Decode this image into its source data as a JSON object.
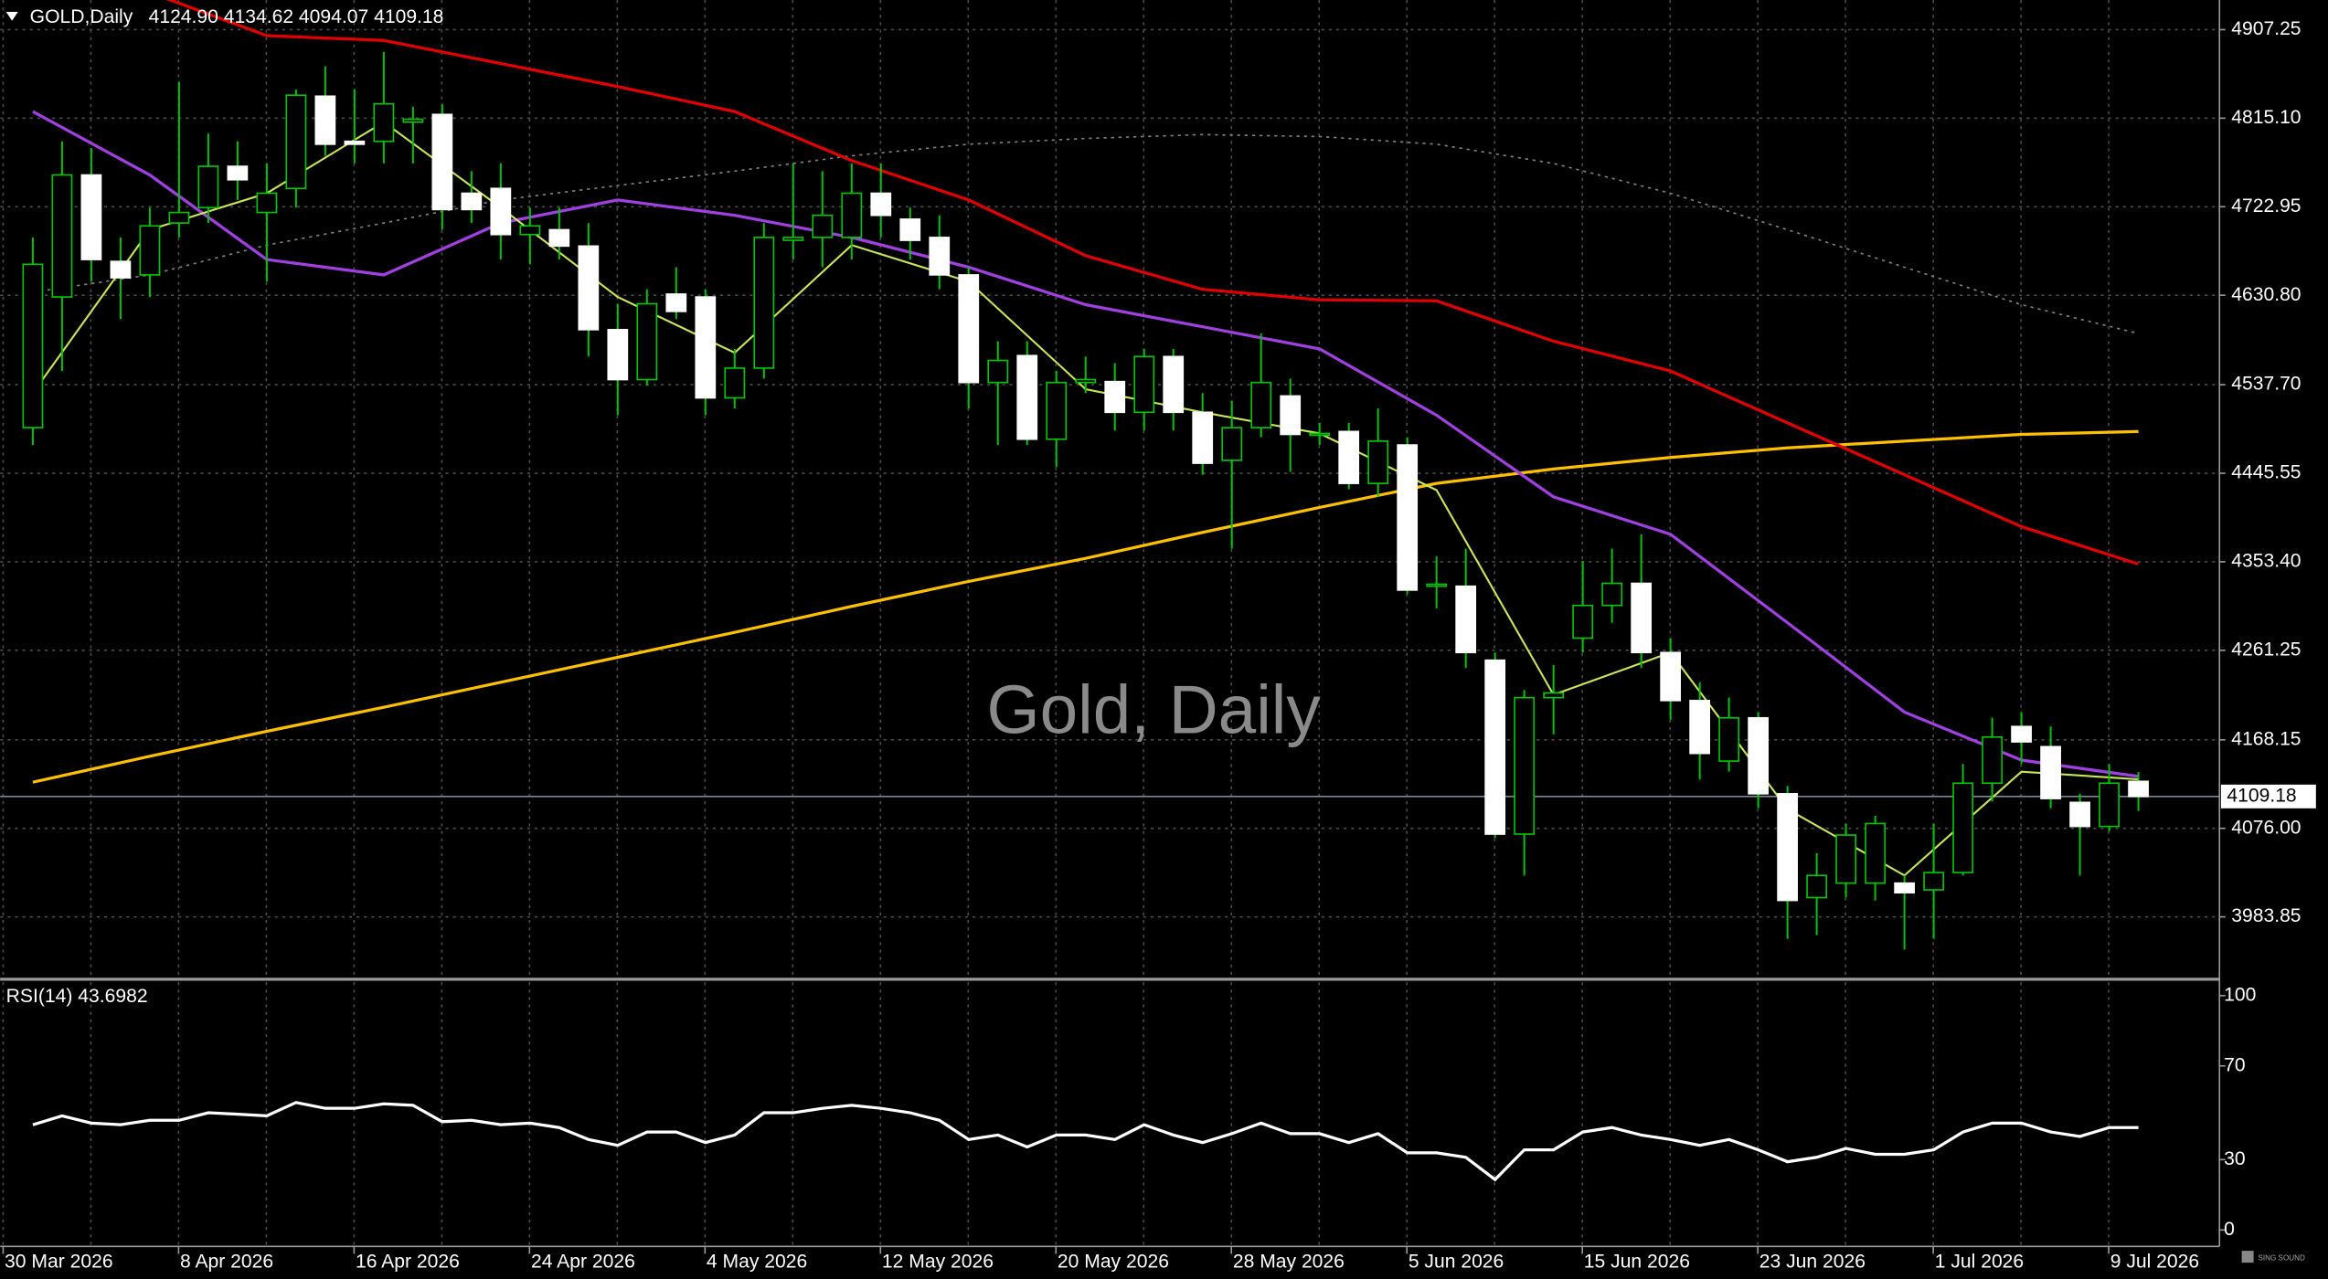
{
  "chart_data": {
    "type": "candlestick",
    "title": "GOLD,Daily",
    "ohlc_text": "4124.90 4134.62 4094.07 4109.18",
    "watermark": "Gold, Daily",
    "brand": "SING SOUND",
    "categories": [
      "30 Mar 2026",
      null,
      null,
      null,
      null,
      null,
      "8 Apr 2026",
      null,
      null,
      null,
      null,
      null,
      "16 Apr 2026",
      null,
      null,
      null,
      null,
      null,
      "24 Apr 2026",
      null,
      null,
      null,
      null,
      null,
      "4 May 2026",
      null,
      null,
      null,
      null,
      null,
      "12 May 2026",
      null,
      null,
      null,
      null,
      null,
      "20 May 2026",
      null,
      null,
      null,
      null,
      null,
      "28 May 2026",
      null,
      null,
      null,
      null,
      null,
      "5 Jun 2026",
      null,
      null,
      null,
      null,
      null,
      "15 Jun 2026",
      null,
      null,
      null,
      null,
      null,
      "23 Jun 2026",
      null,
      null,
      null,
      null,
      null,
      "1 Jul 2026",
      null,
      null,
      null,
      null,
      null,
      "9 Jul 2026"
    ],
    "open": [
      4493,
      4629,
      4756,
      4666,
      4652,
      4706,
      4722,
      4765,
      4717,
      4742,
      4838,
      4791,
      4791,
      4811,
      4819,
      4737,
      4742,
      4694,
      4699,
      4682,
      4595,
      4543,
      4632,
      4629,
      4524,
      4555,
      4688,
      4691,
      4691,
      4737,
      4710,
      4691,
      4652,
      4540,
      4568,
      4481,
      4540,
      4541,
      4509,
      4567,
      4509,
      4459,
      4493,
      4526,
      4486,
      4489,
      4435,
      4475,
      4328,
      4328,
      4251,
      4070,
      4212,
      4274,
      4308,
      4331,
      4259,
      4209,
      4146,
      4191,
      4112,
      4004,
      4019,
      4019,
      4019,
      4012,
      4030,
      4123,
      4182,
      4161,
      4103,
      4078,
      4124.9
    ],
    "high": [
      4691,
      4791,
      4784,
      4691,
      4722,
      4853,
      4799,
      4791,
      4768,
      4845,
      4869,
      4845,
      4884,
      4827,
      4830,
      4760,
      4768,
      4722,
      4722,
      4706,
      4622,
      4637,
      4660,
      4637,
      4575,
      4706,
      4768,
      4760,
      4768,
      4768,
      4722,
      4714,
      4660,
      4583,
      4583,
      4552,
      4567,
      4560,
      4575,
      4575,
      4529,
      4521,
      4591,
      4544,
      4498,
      4498,
      4513,
      4483,
      4359,
      4367,
      4259,
      4220,
      4246,
      4354,
      4367,
      4382,
      4274,
      4228,
      4212,
      4197,
      4120,
      4050,
      4081,
      4089,
      4027,
      4081,
      4143,
      4191,
      4197,
      4182,
      4112,
      4143,
      4134.62
    ],
    "low": [
      4475,
      4552,
      4645,
      4606,
      4629,
      4691,
      4706,
      4730,
      4645,
      4722,
      4776,
      4768,
      4768,
      4768,
      4699,
      4706,
      4668,
      4663,
      4668,
      4567,
      4506,
      4537,
      4606,
      4506,
      4513,
      4544,
      4668,
      4660,
      4668,
      4691,
      4668,
      4637,
      4513,
      4475,
      4475,
      4452,
      4529,
      4490,
      4490,
      4490,
      4444,
      4367,
      4483,
      4447,
      4475,
      4429,
      4421,
      4320,
      4305,
      4243,
      4066,
      4027,
      4174,
      4259,
      4290,
      4243,
      4189,
      4127,
      4135,
      4097,
      3961,
      3965,
      4004,
      4001,
      3950,
      3961,
      4027,
      4104,
      4143,
      4097,
      4027,
      4073,
      4094.07
    ],
    "close": [
      4663,
      4756,
      4668,
      4649,
      4703,
      4717,
      4765,
      4751,
      4737,
      4839,
      4788,
      4788,
      4830,
      4814,
      4720,
      4720,
      4694,
      4703,
      4682,
      4595,
      4543,
      4622,
      4614,
      4524,
      4555,
      4691,
      4691,
      4714,
      4737,
      4714,
      4688,
      4652,
      4540,
      4563,
      4481,
      4540,
      4543,
      4509,
      4567,
      4509,
      4456,
      4493,
      4540,
      4486,
      4487,
      4435,
      4479,
      4324,
      4330,
      4259,
      4070,
      4212,
      4217,
      4308,
      4331,
      4259,
      4209,
      4154,
      4191,
      4112,
      4001,
      4027,
      4069,
      4081,
      4009,
      4030,
      4123,
      4171,
      4166,
      4107,
      4078,
      4123,
      4109.18
    ],
    "up_color": "#000000",
    "down_color": "#ffffff",
    "wick_color": "#00c800",
    "ylim": [
      3922.0,
      4938.1
    ],
    "yticks": [
      4907.25,
      {
        "value": 4815.1,
        "label": "4815.10"
      },
      4722.95,
      {
        "value": 4630.8,
        "label": "4630.80"
      },
      {
        "value": 4537.7,
        "label": "4537.70"
      },
      4445.55,
      {
        "value": 4353.4,
        "label": "4353.40"
      },
      4261.25,
      4168.15,
      {
        "value": 4076.0,
        "label": "4076.00"
      },
      3983.85
    ],
    "grid": true,
    "last_price": {
      "value": 4109.18,
      "label": "4109.18"
    },
    "overlays": [
      {
        "color": "#ffc000",
        "dash": false,
        "width": 2,
        "x": [
          0,
          4,
          8,
          12,
          16,
          20,
          24,
          28,
          32,
          36,
          40,
          44,
          48,
          52,
          56,
          60,
          64,
          68,
          72
        ],
        "values": [
          4124,
          4151,
          4177,
          4202,
          4228,
          4254,
          4280,
          4307,
          4333,
          4357,
          4384,
          4410,
          4435,
          4450,
          4462,
          4472,
          4479,
          4486,
          4489
        ]
      },
      {
        "color": "#808080",
        "dash": true,
        "width": 1,
        "x": [
          0,
          4,
          8,
          12,
          16,
          20,
          24,
          28,
          32,
          36,
          40,
          44,
          48,
          52,
          56,
          60,
          64,
          68,
          72
        ],
        "values": [
          4634,
          4652,
          4683,
          4706,
          4730,
          4745,
          4760,
          4776,
          4788,
          4794,
          4798,
          4796,
          4788,
          4768,
          4737,
          4699,
          4660,
          4621,
          4591
        ]
      },
      {
        "color": "#e00000",
        "dash": false,
        "width": 2,
        "x": [
          0,
          4,
          8,
          12,
          16,
          20,
          24,
          28,
          32,
          36,
          40,
          44,
          48,
          52,
          56,
          60,
          64,
          68,
          72
        ],
        "values": [
          4969,
          4946,
          4901,
          4896,
          4872,
          4848,
          4822,
          4771,
          4730,
          4672,
          4637,
          4626,
          4625,
          4583,
          4552,
          4498,
          4444,
          4390,
          4351
        ]
      },
      {
        "color": "#a040e0",
        "dash": false,
        "width": 2,
        "x": [
          0,
          4,
          8,
          12,
          16,
          20,
          24,
          28,
          32,
          36,
          40,
          44,
          48,
          52,
          56,
          60,
          64,
          68,
          72
        ],
        "values": [
          4822,
          4756,
          4668,
          4652,
          4706,
          4730,
          4714,
          4691,
          4660,
          4621,
          4598,
          4575,
          4506,
          4421,
          4382,
          4290,
          4197,
          4147,
          4130
        ]
      },
      {
        "color": "#c8e65a",
        "dash": false,
        "width": 1.3,
        "x": [
          0,
          4,
          8,
          12,
          16,
          20,
          24,
          28,
          32,
          36,
          40,
          44,
          48,
          52,
          56,
          60,
          64,
          68,
          72
        ],
        "values": [
          4529,
          4699,
          4737,
          4811,
          4722,
          4629,
          4571,
          4683,
          4645,
          4533,
          4509,
          4487,
          4428,
          4215,
          4259,
          4096,
          4027,
          4135,
          4127
        ]
      }
    ],
    "indicator": {
      "type": "line",
      "title": "RSI(14) 43.6982",
      "color": "#ffffff",
      "ylim": [
        -7,
        105.7
      ],
      "yticks": [
        0,
        30,
        70,
        100
      ],
      "values": [
        44.9,
        48.7,
        45.6,
        44.9,
        46.8,
        46.8,
        50.0,
        49.4,
        48.7,
        54.4,
        51.9,
        51.9,
        53.8,
        53.2,
        46.2,
        46.8,
        44.9,
        45.6,
        43.7,
        38.6,
        36.1,
        41.8,
        41.8,
        37.3,
        40.5,
        50.0,
        50.0,
        51.9,
        53.2,
        51.9,
        50.0,
        46.8,
        38.6,
        40.5,
        35.4,
        40.5,
        40.5,
        38.6,
        44.9,
        40.5,
        37.3,
        41.1,
        45.6,
        41.1,
        41.1,
        37.3,
        41.1,
        32.9,
        32.9,
        31.0,
        21.5,
        34.2,
        34.2,
        41.8,
        43.7,
        40.5,
        38.6,
        36.1,
        38.6,
        34.2,
        29.1,
        31.0,
        34.8,
        32.3,
        32.3,
        34.2,
        41.8,
        45.6,
        45.6,
        41.8,
        39.9,
        43.7,
        43.7
      ]
    }
  }
}
